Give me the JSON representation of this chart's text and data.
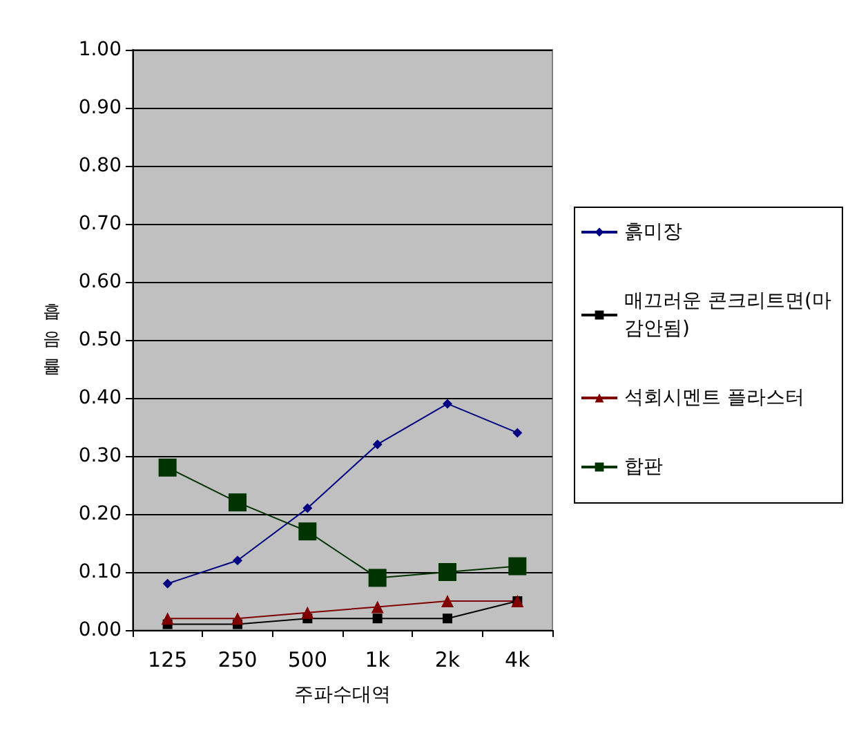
{
  "chart_data": {
    "type": "line",
    "xlabel": "주파수대역",
    "ylabel": "흡음률",
    "categories": [
      "125",
      "250",
      "500",
      "1k",
      "2k",
      "4k"
    ],
    "series": [
      {
        "name": "흙미장",
        "color": "#000080",
        "marker": "diamond",
        "values": [
          0.08,
          0.12,
          0.21,
          0.32,
          0.39,
          0.34
        ]
      },
      {
        "name": "매끄러운 콘크리트면(마감안됨)",
        "color": "#000000",
        "marker": "square",
        "values": [
          0.01,
          0.01,
          0.02,
          0.02,
          0.02,
          0.05
        ]
      },
      {
        "name": "석회시멘트 플라스터",
        "color": "#800000",
        "marker": "triangle",
        "values": [
          0.02,
          0.02,
          0.03,
          0.04,
          0.05,
          0.05
        ]
      },
      {
        "name": "합판",
        "color": "#003300",
        "marker": "square",
        "values": [
          0.28,
          0.22,
          0.17,
          0.09,
          0.1,
          0.11
        ]
      }
    ],
    "ylim": [
      0,
      1
    ],
    "yticks": [
      {
        "value": 0,
        "label": "0.00"
      },
      {
        "value": 0.1,
        "label": "0.10"
      },
      {
        "value": 0.2,
        "label": "0.20"
      },
      {
        "value": 0.3,
        "label": "0.30"
      },
      {
        "value": 0.4,
        "label": "0.40"
      },
      {
        "value": 0.5,
        "label": "0.50"
      },
      {
        "value": 0.6,
        "label": "0.60"
      },
      {
        "value": 0.7,
        "label": "0.70"
      },
      {
        "value": 0.8,
        "label": "0.80"
      },
      {
        "value": 0.9,
        "label": "0.90"
      },
      {
        "value": 1,
        "label": "1.00"
      }
    ],
    "grid": "y",
    "legend": "right"
  }
}
